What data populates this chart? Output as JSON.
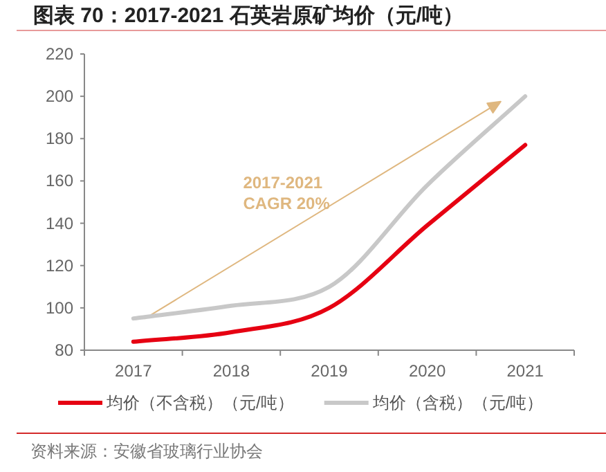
{
  "chart_data": {
    "type": "line",
    "title": "图表 70：2017-2021 石英岩原矿均价（元/吨）",
    "categories": [
      "2017",
      "2018",
      "2019",
      "2020",
      "2021"
    ],
    "series": [
      {
        "name": "均价（不含税）（元/吨）",
        "color": "#e60012",
        "values": [
          84,
          88.5,
          100,
          139,
          177
        ]
      },
      {
        "name": "均价（含税）（元/吨）",
        "color": "#c8c8c8",
        "values": [
          95,
          101,
          110,
          158,
          200
        ]
      }
    ],
    "ylim": [
      80,
      220
    ],
    "yticks": [
      80,
      100,
      120,
      140,
      160,
      180,
      200,
      220
    ],
    "legend": "bottom",
    "annotations": [
      "2017-2021\nCAGR 20%",
      "资料来源：安徽省玻璃行业协会"
    ]
  }
}
